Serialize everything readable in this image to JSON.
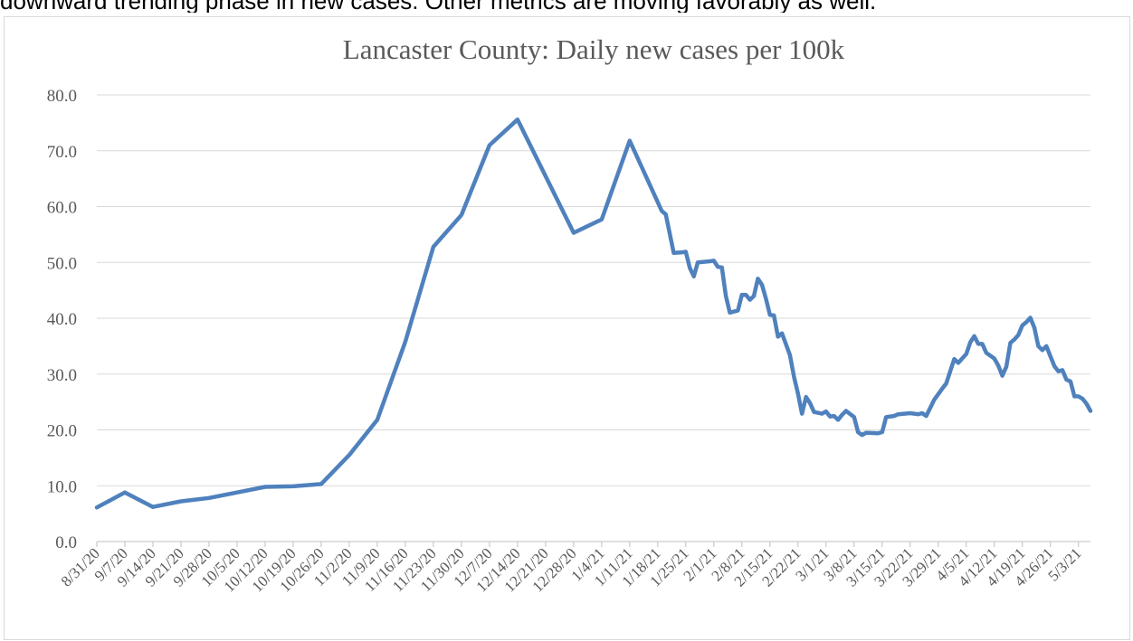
{
  "document": {
    "top_text": "downward trending phase in new cases. Other metrics are moving favorably as well."
  },
  "chart_data": {
    "type": "line",
    "title": "Lancaster County: Daily new cases per 100k",
    "xlabel": "",
    "ylabel": "",
    "ylim": [
      0,
      80
    ],
    "yticks": [
      "0.0",
      "10.0",
      "20.0",
      "30.0",
      "40.0",
      "50.0",
      "60.0",
      "70.0",
      "80.0"
    ],
    "grid": true,
    "legend": "none",
    "series_color": "#4f81bd",
    "x_tick_labels": [
      "8/31/20",
      "9/7/20",
      "9/14/20",
      "9/21/20",
      "9/28/20",
      "10/5/20",
      "10/12/20",
      "10/19/20",
      "10/26/20",
      "11/2/20",
      "11/9/20",
      "11/16/20",
      "11/23/20",
      "11/30/20",
      "12/7/20",
      "12/14/20",
      "12/21/20",
      "12/28/20",
      "1/4/21",
      "1/11/21",
      "1/18/21",
      "1/25/21",
      "2/1/21",
      "2/8/21",
      "2/15/21",
      "2/22/21",
      "3/1/21",
      "3/8/21",
      "3/15/21",
      "3/22/21",
      "3/29/21",
      "4/5/21",
      "4/12/21",
      "4/19/21",
      "4/26/21",
      "5/3/21"
    ],
    "series": [
      {
        "points": [
          [
            "8/31/20",
            6.1
          ],
          [
            "9/7/20",
            8.8
          ],
          [
            "9/14/20",
            6.2
          ],
          [
            "9/21/20",
            7.2
          ],
          [
            "9/28/20",
            7.8
          ],
          [
            "10/5/20",
            8.8
          ],
          [
            "10/12/20",
            9.8
          ],
          [
            "10/19/20",
            9.9
          ],
          [
            "10/26/20",
            10.3
          ],
          [
            "11/2/20",
            15.5
          ],
          [
            "11/9/20",
            21.8
          ],
          [
            "11/16/20",
            35.8
          ],
          [
            "11/23/20",
            52.8
          ],
          [
            "11/30/20",
            58.5
          ],
          [
            "12/7/20",
            71.0
          ],
          [
            "12/14/20",
            75.6
          ],
          [
            "12/28/20",
            55.3
          ],
          [
            "1/4/21",
            57.7
          ],
          [
            "1/11/21",
            71.8
          ],
          [
            "1/18/21",
            60.8
          ],
          [
            "1/19/21",
            59.2
          ],
          [
            "1/20/21",
            58.6
          ],
          [
            "1/22/21",
            51.7
          ],
          [
            "1/24/21",
            51.8
          ],
          [
            "1/25/21",
            51.9
          ],
          [
            "1/26/21",
            49.0
          ],
          [
            "1/27/21",
            47.5
          ],
          [
            "1/28/21",
            50.0
          ],
          [
            "1/31/21",
            50.2
          ],
          [
            "2/1/21",
            50.3
          ],
          [
            "2/2/21",
            49.2
          ],
          [
            "2/3/21",
            49.1
          ],
          [
            "2/4/21",
            44.0
          ],
          [
            "2/5/21",
            41.0
          ],
          [
            "2/7/21",
            41.4
          ],
          [
            "2/8/21",
            44.2
          ],
          [
            "2/9/21",
            44.2
          ],
          [
            "2/10/21",
            43.3
          ],
          [
            "2/11/21",
            44.0
          ],
          [
            "2/12/21",
            47.1
          ],
          [
            "2/13/21",
            46.0
          ],
          [
            "2/14/21",
            43.5
          ],
          [
            "2/15/21",
            40.6
          ],
          [
            "2/16/21",
            40.5
          ],
          [
            "2/17/21",
            36.7
          ],
          [
            "2/18/21",
            37.3
          ],
          [
            "2/20/21",
            33.4
          ],
          [
            "2/21/21",
            29.5
          ],
          [
            "2/22/21",
            26.5
          ],
          [
            "2/23/21",
            22.9
          ],
          [
            "2/24/21",
            25.9
          ],
          [
            "2/25/21",
            24.8
          ],
          [
            "2/26/21",
            23.2
          ],
          [
            "2/28/21",
            22.9
          ],
          [
            "3/1/21",
            23.3
          ],
          [
            "3/2/21",
            22.4
          ],
          [
            "3/3/21",
            22.5
          ],
          [
            "3/4/21",
            21.8
          ],
          [
            "3/5/21",
            22.7
          ],
          [
            "3/6/21",
            23.4
          ],
          [
            "3/8/21",
            22.3
          ],
          [
            "3/9/21",
            19.6
          ],
          [
            "3/10/21",
            19.1
          ],
          [
            "3/11/21",
            19.5
          ],
          [
            "3/14/21",
            19.4
          ],
          [
            "3/15/21",
            19.6
          ],
          [
            "3/16/21",
            22.3
          ],
          [
            "3/18/21",
            22.5
          ],
          [
            "3/19/21",
            22.8
          ],
          [
            "3/22/21",
            23.0
          ],
          [
            "3/24/21",
            22.8
          ],
          [
            "3/25/21",
            23.0
          ],
          [
            "3/26/21",
            22.5
          ],
          [
            "3/28/21",
            25.4
          ],
          [
            "3/29/21",
            26.4
          ],
          [
            "3/30/21",
            27.4
          ],
          [
            "3/31/21",
            28.3
          ],
          [
            "4/2/21",
            32.7
          ],
          [
            "4/3/21",
            32.0
          ],
          [
            "4/5/21",
            33.6
          ],
          [
            "4/6/21",
            35.7
          ],
          [
            "4/7/21",
            36.8
          ],
          [
            "4/8/21",
            35.4
          ],
          [
            "4/9/21",
            35.4
          ],
          [
            "4/10/21",
            33.8
          ],
          [
            "4/12/21",
            32.8
          ],
          [
            "4/13/21",
            31.5
          ],
          [
            "4/14/21",
            29.7
          ],
          [
            "4/15/21",
            31.3
          ],
          [
            "4/16/21",
            35.6
          ],
          [
            "4/17/21",
            36.2
          ],
          [
            "4/18/21",
            37.0
          ],
          [
            "4/19/21",
            38.7
          ],
          [
            "4/20/21",
            39.3
          ],
          [
            "4/21/21",
            40.1
          ],
          [
            "4/22/21",
            38.3
          ],
          [
            "4/23/21",
            35.0
          ],
          [
            "4/24/21",
            34.3
          ],
          [
            "4/25/21",
            35.0
          ],
          [
            "4/26/21",
            33.2
          ],
          [
            "4/27/21",
            31.4
          ],
          [
            "4/28/21",
            30.5
          ],
          [
            "4/29/21",
            30.7
          ],
          [
            "4/30/21",
            29.0
          ],
          [
            "5/1/21",
            28.7
          ],
          [
            "5/2/21",
            26.0
          ],
          [
            "5/3/21",
            26.0
          ],
          [
            "5/4/21",
            25.6
          ],
          [
            "5/5/21",
            24.7
          ],
          [
            "5/6/21",
            23.4
          ]
        ]
      }
    ]
  }
}
